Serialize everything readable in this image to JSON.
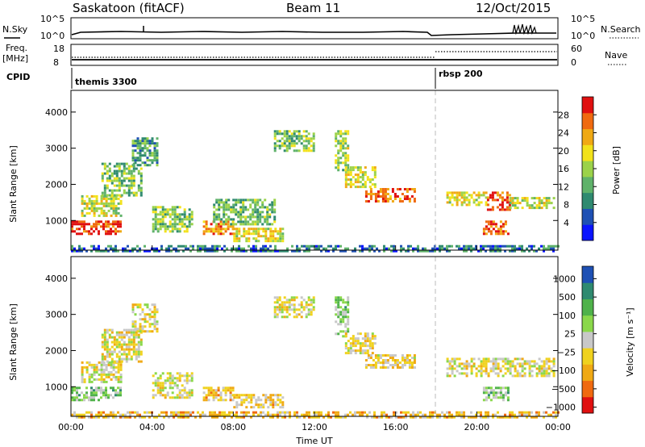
{
  "header": {
    "station": "Saskatoon (fitACF)",
    "beam": "Beam 11",
    "date": "12/Oct/2015"
  },
  "strips": {
    "nsky_label": "N.Sky",
    "nsearch_label": "N.Search",
    "nsky_ticks": [
      "10^5",
      "10^0"
    ],
    "nsearch_ticks": [
      "10^5",
      "10^0"
    ],
    "freq_label_1": "Freq.",
    "freq_label_2": "[MHz]",
    "freq_ticks": [
      "18",
      "8"
    ],
    "nave_label": "Nave",
    "nave_ticks": [
      "60",
      "0"
    ],
    "cpid_label": "CPID",
    "cpid_segments": [
      {
        "label": "themis 3300",
        "start_hour": 0
      },
      {
        "label": "rbsp 200",
        "start_hour": 18
      }
    ]
  },
  "chart_data": [
    {
      "type": "heatmap",
      "name": "power",
      "ylabel": "Slant Range [km]",
      "xlabel": "",
      "x_ticks": [
        "00:00",
        "04:00",
        "08:00",
        "12:00",
        "16:00",
        "20:00",
        "00:00"
      ],
      "xlim_hours": [
        0,
        24
      ],
      "y_ticks": [
        "1000",
        "2000",
        "3000",
        "4000"
      ],
      "ylim_km": [
        180,
        4600
      ],
      "colorbar": {
        "label": "Power [dB]",
        "ticks": [
          "4",
          "8",
          "12",
          "16",
          "20",
          "24",
          "28"
        ],
        "range": [
          0,
          30
        ],
        "colors": [
          "#0a14ff",
          "#1e50b4",
          "#2f8a70",
          "#5fb26a",
          "#9bd24a",
          "#f2e21a",
          "#f0a914",
          "#f06a10",
          "#e01010"
        ]
      },
      "blobs": [
        {
          "h": [
            0.0,
            2.4
          ],
          "km": [
            600,
            1000
          ],
          "lvl": 0.92
        },
        {
          "h": [
            0.5,
            2.5
          ],
          "km": [
            1100,
            1700
          ],
          "lvl": 0.55
        },
        {
          "h": [
            1.5,
            3.5
          ],
          "km": [
            1700,
            2600
          ],
          "lvl": 0.45
        },
        {
          "h": [
            3.0,
            4.2
          ],
          "km": [
            2500,
            3300
          ],
          "lvl": 0.35
        },
        {
          "h": [
            4.0,
            6.0
          ],
          "km": [
            700,
            1400
          ],
          "lvl": 0.45
        },
        {
          "h": [
            6.5,
            8.0
          ],
          "km": [
            600,
            1000
          ],
          "lvl": 0.78
        },
        {
          "h": [
            8.0,
            10.5
          ],
          "km": [
            400,
            800
          ],
          "lvl": 0.6
        },
        {
          "h": [
            7.0,
            10.0
          ],
          "km": [
            900,
            1600
          ],
          "lvl": 0.4
        },
        {
          "h": [
            10.0,
            12.0
          ],
          "km": [
            2900,
            3500
          ],
          "lvl": 0.45
        },
        {
          "h": [
            13.0,
            13.6
          ],
          "km": [
            2400,
            3500
          ],
          "lvl": 0.5
        },
        {
          "h": [
            13.5,
            15.0
          ],
          "km": [
            1900,
            2500
          ],
          "lvl": 0.6
        },
        {
          "h": [
            14.5,
            17.0
          ],
          "km": [
            1500,
            1900
          ],
          "lvl": 0.82
        },
        {
          "h": [
            18.5,
            20.5
          ],
          "km": [
            1400,
            1800
          ],
          "lvl": 0.6
        },
        {
          "h": [
            20.5,
            21.6
          ],
          "km": [
            1300,
            1800
          ],
          "lvl": 0.88
        },
        {
          "h": [
            21.6,
            23.8
          ],
          "km": [
            1350,
            1650
          ],
          "lvl": 0.55
        },
        {
          "h": [
            20.3,
            21.5
          ],
          "km": [
            600,
            1000
          ],
          "lvl": 0.85
        },
        {
          "h": [
            0.0,
            24.0
          ],
          "km": [
            180,
            320
          ],
          "lvl": 0.25
        }
      ]
    },
    {
      "type": "heatmap",
      "name": "velocity",
      "ylabel": "Slant Range [km]",
      "xlabel": "Time UT",
      "x_ticks": [
        "00:00",
        "04:00",
        "08:00",
        "12:00",
        "16:00",
        "20:00",
        "00:00"
      ],
      "xlim_hours": [
        0,
        24
      ],
      "y_ticks": [
        "1000",
        "2000",
        "3000",
        "4000"
      ],
      "ylim_km": [
        180,
        4600
      ],
      "colorbar": {
        "label": "Velocity [m s⁻¹]",
        "ticks": [
          "1000",
          "500",
          "100",
          "25",
          "−25",
          "−100",
          "−500",
          "−1000"
        ],
        "range": [
          -1200,
          1200
        ],
        "colors": [
          "#e01010",
          "#f06a10",
          "#f0a914",
          "#f0d21e",
          "#c8c8c8",
          "#8ad84a",
          "#4fb24a",
          "#2f8a70",
          "#1e50b4"
        ]
      },
      "blobs": [
        {
          "h": [
            0.0,
            2.4
          ],
          "km": [
            600,
            1000
          ],
          "lvl": 0.62
        },
        {
          "h": [
            0.5,
            2.5
          ],
          "km": [
            1100,
            1700
          ],
          "lvl": 0.45
        },
        {
          "h": [
            1.5,
            3.5
          ],
          "km": [
            1700,
            2600
          ],
          "lvl": 0.45
        },
        {
          "h": [
            3.0,
            4.2
          ],
          "km": [
            2500,
            3300
          ],
          "lvl": 0.45
        },
        {
          "h": [
            4.0,
            6.0
          ],
          "km": [
            700,
            1400
          ],
          "lvl": 0.45
        },
        {
          "h": [
            6.5,
            8.0
          ],
          "km": [
            600,
            1000
          ],
          "lvl": 0.35
        },
        {
          "h": [
            8.0,
            10.5
          ],
          "km": [
            400,
            800
          ],
          "lvl": 0.38
        },
        {
          "h": [
            10.0,
            12.0
          ],
          "km": [
            2900,
            3500
          ],
          "lvl": 0.45
        },
        {
          "h": [
            13.0,
            13.6
          ],
          "km": [
            2400,
            3500
          ],
          "lvl": 0.62
        },
        {
          "h": [
            13.5,
            15.0
          ],
          "km": [
            1900,
            2500
          ],
          "lvl": 0.45
        },
        {
          "h": [
            14.5,
            17.0
          ],
          "km": [
            1500,
            1900
          ],
          "lvl": 0.4
        },
        {
          "h": [
            18.5,
            23.8
          ],
          "km": [
            1300,
            1800
          ],
          "lvl": 0.45
        },
        {
          "h": [
            20.3,
            21.5
          ],
          "km": [
            600,
            1000
          ],
          "lvl": 0.62
        },
        {
          "h": [
            0.0,
            24.0
          ],
          "km": [
            180,
            320
          ],
          "lvl": 0.35
        }
      ]
    }
  ]
}
